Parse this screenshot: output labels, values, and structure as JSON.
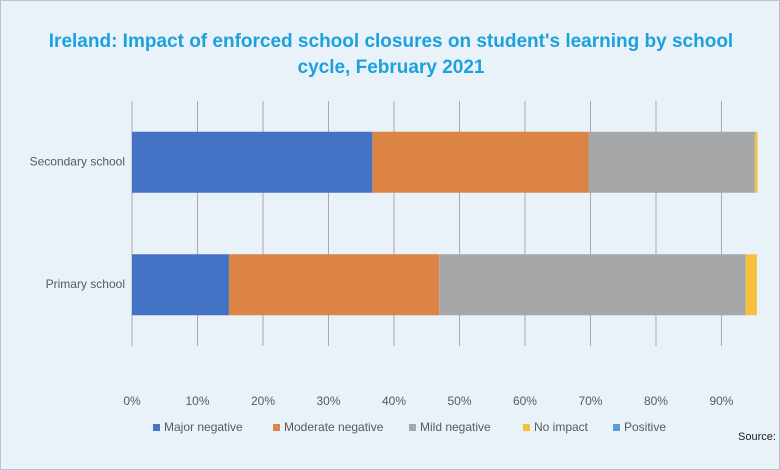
{
  "chart_data": {
    "type": "stacked-barh",
    "title": "Ireland: Impact of enforced school closures on student's learning by school cycle, February 2021",
    "categories": [
      "Secondary school",
      "Primary school"
    ],
    "series": [
      {
        "name": "Major negative",
        "color": "#4472c4",
        "values": [
          36.7,
          14.8
        ]
      },
      {
        "name": "Moderate negative",
        "color": "#db8443",
        "values": [
          33.0,
          32.1
        ]
      },
      {
        "name": "Mild negative",
        "color": "#a5a7a8",
        "values": [
          25.4,
          46.8
        ]
      },
      {
        "name": "No impact",
        "color": "#f6bf3c",
        "values": [
          0.4,
          1.7
        ]
      },
      {
        "name": "Positive",
        "color": "#5b9bd5",
        "values": [
          0,
          0
        ]
      }
    ],
    "xlim": [
      0,
      95.5
    ],
    "xticks": [
      {
        "value": 0,
        "label": "0%"
      },
      {
        "value": 10,
        "label": "10%"
      },
      {
        "value": 20,
        "label": "20%"
      },
      {
        "value": 30,
        "label": "30%"
      },
      {
        "value": 40,
        "label": "40%"
      },
      {
        "value": 50,
        "label": "50%"
      },
      {
        "value": 60,
        "label": "60%"
      },
      {
        "value": 70,
        "label": "70%"
      },
      {
        "value": 80,
        "label": "80%"
      },
      {
        "value": 90,
        "label": "90%"
      }
    ],
    "grid": true,
    "legend": "bottom",
    "source": "Source: C"
  }
}
